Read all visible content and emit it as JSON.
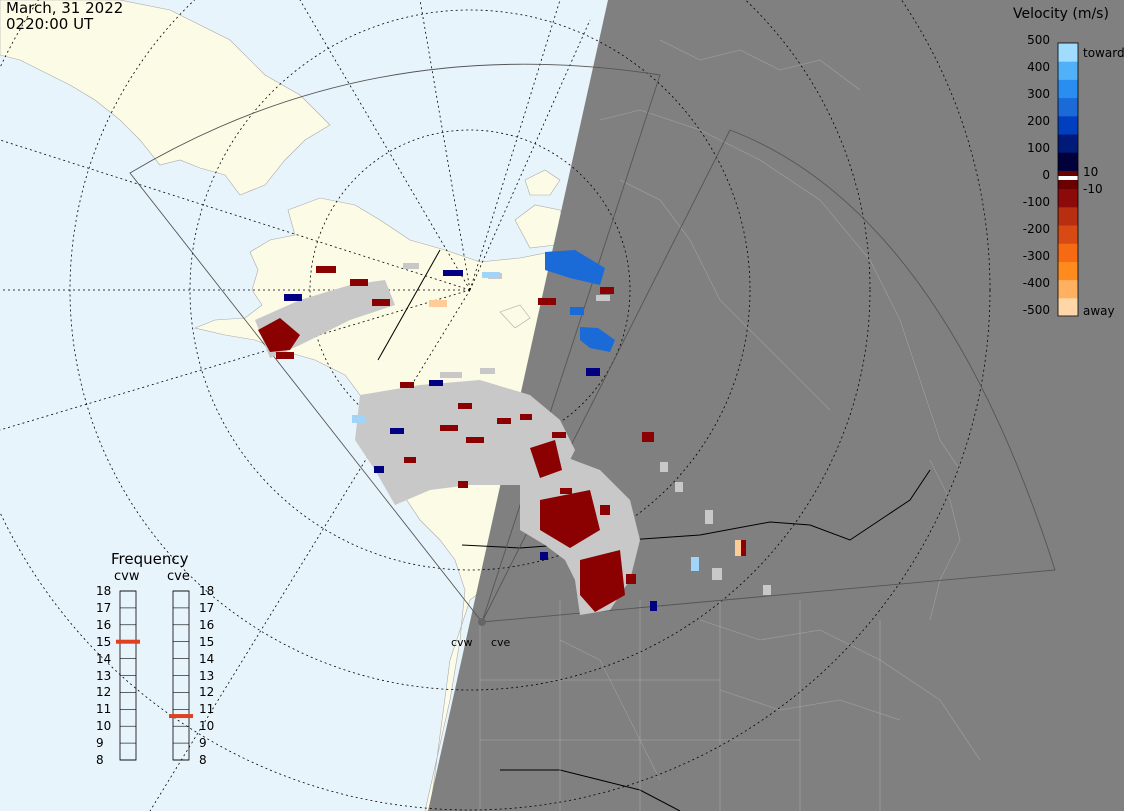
{
  "header": {
    "date": "March, 31 2022",
    "time": "0220:00 UT"
  },
  "colorbar": {
    "title": "Velocity (m/s)",
    "ticks": [
      "500",
      "400",
      "300",
      "200",
      "100",
      "0",
      "-100",
      "-200",
      "-300",
      "-400",
      "-500"
    ],
    "inner_ticks": [
      "10",
      "-10"
    ],
    "end_labels": {
      "top": "toward",
      "bottom": "away"
    },
    "colors": [
      "#ffd6a8",
      "#ffb060",
      "#ff8a1e",
      "#f56a12",
      "#d84a14",
      "#b82e10",
      "#8c0a0a",
      "#6a0000",
      "#00003a",
      "#001a7a",
      "#0040c0",
      "#1a6ad8",
      "#2a8ef0",
      "#50b0f8",
      "#a0dcff"
    ]
  },
  "frequency": {
    "title": "Frequency",
    "radars": [
      "cvw",
      "cve"
    ],
    "scale": [
      "18",
      "17",
      "16",
      "15",
      "14",
      "13",
      "12",
      "11",
      "10",
      "9",
      "8"
    ],
    "cvw_mhz": 15.0,
    "cve_mhz": 10.6,
    "marker_color": "#e04020"
  },
  "radar_labels": [
    "cvw",
    "cve"
  ],
  "map": {
    "ocean_color": "#e8f4fc",
    "land_color": "#fcfbe6",
    "night_color": "#808080",
    "gs_color": "#c8c8c8",
    "away_dark": "#8b0000",
    "toward_dark": "#000080",
    "toward_mid": "#1a6ad8",
    "toward_light": "#a0d4f8",
    "away_light": "#ffcc99"
  }
}
